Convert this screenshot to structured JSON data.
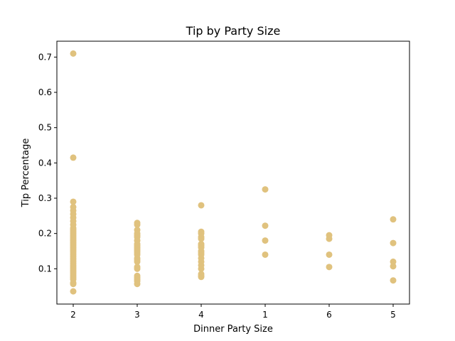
{
  "chart_data": {
    "type": "scatter",
    "title": "Tip by Party Size",
    "xlabel": "Dinner Party Size",
    "ylabel": "Tip Percentage",
    "categories": [
      "2",
      "3",
      "4",
      "1",
      "6",
      "5"
    ],
    "ylim": [
      0.0,
      0.745
    ],
    "yticks": [
      0.1,
      0.2,
      0.3,
      0.4,
      0.5,
      0.6,
      0.7
    ],
    "ytick_labels": [
      "0.1",
      "0.2",
      "0.3",
      "0.4",
      "0.5",
      "0.6",
      "0.7"
    ],
    "grid": false,
    "marker_color": "#E0C27E",
    "series": [
      {
        "values": {
          "2": [
            0.71,
            0.415,
            0.29,
            0.275,
            0.265,
            0.255,
            0.245,
            0.235,
            0.225,
            0.215,
            0.21,
            0.205,
            0.2,
            0.195,
            0.19,
            0.185,
            0.18,
            0.175,
            0.17,
            0.165,
            0.16,
            0.155,
            0.15,
            0.145,
            0.14,
            0.135,
            0.13,
            0.125,
            0.12,
            0.115,
            0.11,
            0.105,
            0.1,
            0.095,
            0.09,
            0.085,
            0.08,
            0.075,
            0.07,
            0.06,
            0.057,
            0.036
          ],
          "3": [
            0.23,
            0.225,
            0.21,
            0.2,
            0.195,
            0.19,
            0.18,
            0.17,
            0.165,
            0.16,
            0.155,
            0.15,
            0.145,
            0.14,
            0.13,
            0.125,
            0.12,
            0.105,
            0.1,
            0.08,
            0.075,
            0.07,
            0.065,
            0.057
          ],
          "4": [
            0.28,
            0.205,
            0.2,
            0.19,
            0.185,
            0.17,
            0.165,
            0.16,
            0.15,
            0.145,
            0.14,
            0.13,
            0.12,
            0.11,
            0.1,
            0.085,
            0.08,
            0.077
          ],
          "1": [
            0.325,
            0.222,
            0.18,
            0.14
          ],
          "6": [
            0.195,
            0.185,
            0.14,
            0.105
          ],
          "5": [
            0.24,
            0.173,
            0.12,
            0.107,
            0.067
          ]
        }
      }
    ]
  }
}
